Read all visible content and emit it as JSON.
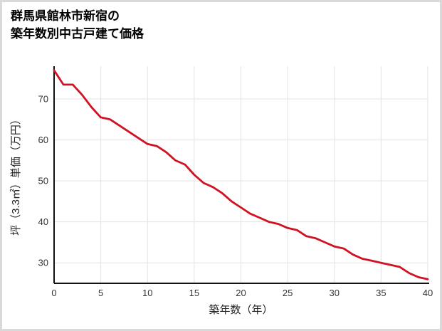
{
  "page": {
    "background": "#ffffff",
    "border_color": "#d9d9d9"
  },
  "title": {
    "line1": "群馬県館林市新宿の",
    "line2": "築年数別中古戸建て価格"
  },
  "colors": {
    "line": "#cf1322",
    "axis": "#111111",
    "grid": "#e3e3e3",
    "tick_text": "#333333"
  },
  "chart_data": {
    "type": "line",
    "title": "群馬県館林市新宿の築年数別中古戸建て価格",
    "xlabel": "築年数（年）",
    "ylabel": "坪（3.3㎡）単価（万円）",
    "x": [
      0,
      1,
      2,
      3,
      4,
      5,
      6,
      7,
      8,
      9,
      10,
      11,
      12,
      13,
      14,
      15,
      16,
      17,
      18,
      19,
      20,
      21,
      22,
      23,
      24,
      25,
      26,
      27,
      28,
      29,
      30,
      31,
      32,
      33,
      34,
      35,
      36,
      37,
      38,
      39,
      40
    ],
    "values": [
      77,
      73.5,
      73.5,
      71,
      68,
      65.5,
      65,
      63.5,
      62,
      60.5,
      59,
      58.5,
      57,
      55,
      54,
      51.5,
      49.5,
      48.5,
      47,
      45,
      43.5,
      42,
      41,
      40,
      39.5,
      38.5,
      38,
      36.5,
      36,
      35,
      34,
      33.5,
      32,
      31,
      30.5,
      30,
      29.5,
      29,
      27.5,
      26.5,
      26
    ],
    "x_ticks": [
      0,
      5,
      10,
      15,
      20,
      25,
      30,
      35,
      40
    ],
    "y_ticks": [
      30,
      40,
      50,
      60,
      70
    ],
    "xlim": [
      0,
      40
    ],
    "ylim": [
      25,
      78
    ],
    "grid": true,
    "line_color": "#cf1322"
  }
}
